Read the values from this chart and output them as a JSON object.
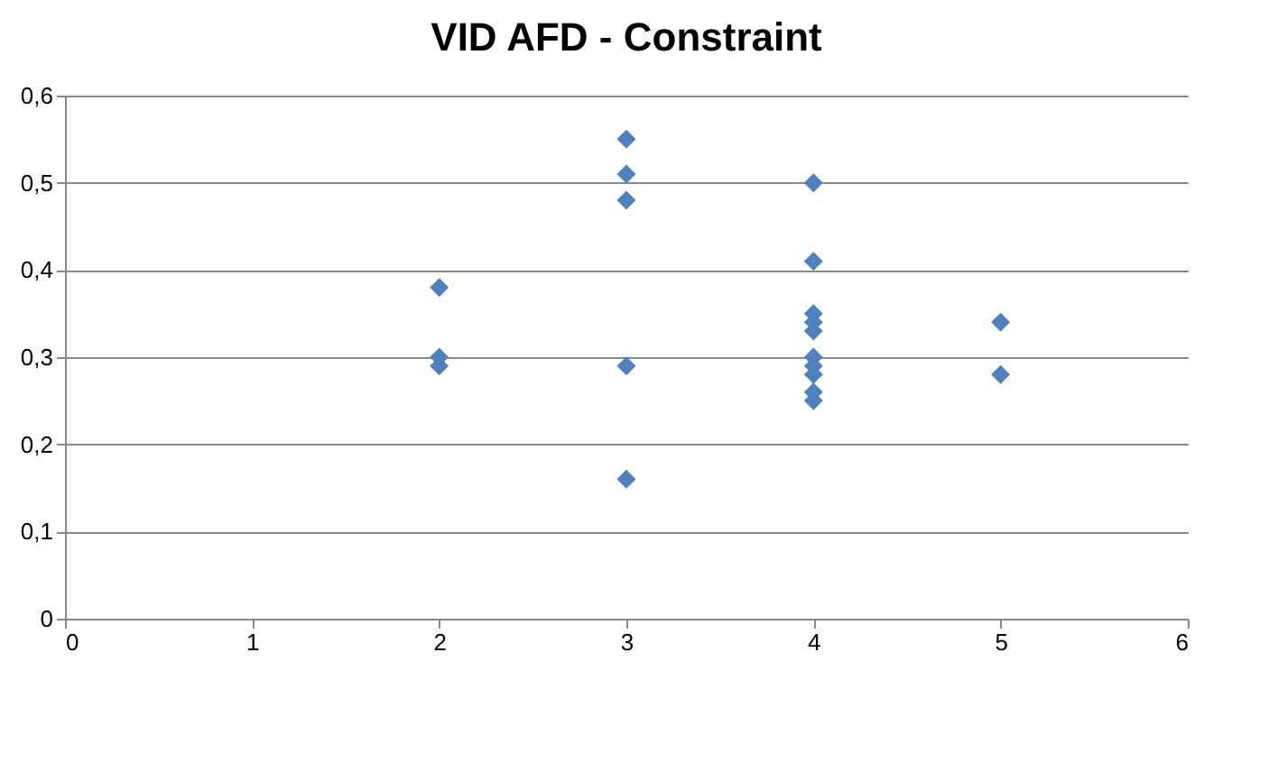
{
  "chart_data": {
    "type": "scatter",
    "title": "VID AFD - Constraint",
    "x": [
      2,
      2,
      2,
      3,
      3,
      3,
      3,
      3,
      4,
      4,
      4,
      4,
      4,
      4,
      4,
      4,
      4,
      4,
      5,
      5
    ],
    "series": [
      {
        "color": "#4f81bd",
        "values": [
          0.38,
          0.3,
          0.29,
          0.55,
          0.51,
          0.48,
          0.29,
          0.16,
          0.5,
          0.41,
          0.35,
          0.34,
          0.33,
          0.3,
          0.29,
          0.28,
          0.26,
          0.25,
          0.34,
          0.28
        ]
      }
    ],
    "xlim": [
      0,
      6
    ],
    "xticks": [
      0,
      1,
      2,
      3,
      4,
      5,
      6
    ],
    "ylim": [
      0,
      0.6
    ],
    "yticks": [
      {
        "value": 0,
        "label": "0"
      },
      {
        "value": 0.1,
        "label": "0,1"
      },
      {
        "value": 0.2,
        "label": "0,2"
      },
      {
        "value": 0.3,
        "label": "0,3"
      },
      {
        "value": 0.4,
        "label": "0,4"
      },
      {
        "value": 0.5,
        "label": "0,5"
      },
      {
        "value": 0.6,
        "label": "0,6"
      }
    ],
    "grid": "y",
    "marker": "diamond",
    "legend": false
  }
}
